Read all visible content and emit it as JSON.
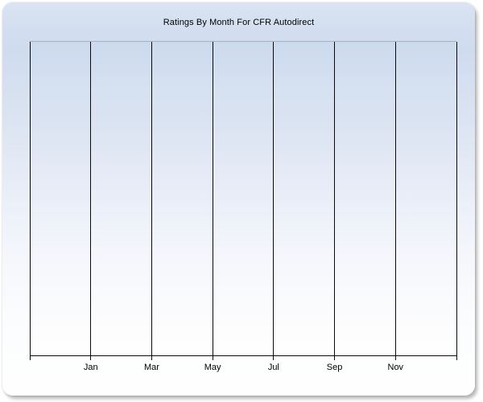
{
  "chart": {
    "title": "Ratings By Month For CFR Autodirect"
  },
  "chart_data": {
    "type": "line",
    "title": "Ratings By Month For CFR Autodirect",
    "x_axis": {
      "tick_labels": [
        "Jan",
        "Mar",
        "May",
        "Jul",
        "Sep",
        "Nov"
      ],
      "gridline_count": 8,
      "months_per_gridline_interval": 2,
      "labels_positioned_under_interior_gridlines": true
    },
    "y_axis": {
      "tick_labels": [],
      "label": ""
    },
    "series": [],
    "layout": {
      "grid": "vertical-only",
      "legend": "none",
      "plot_empty": true,
      "panel_style": "rounded-gradient-card"
    }
  },
  "colors": {
    "panel_gradient_top": "#d6e1f1",
    "panel_gradient_upper": "#cfdcee",
    "panel_gradient_mid": "#e9eef8",
    "panel_gradient_bottom": "#fefefe",
    "plot_top_border": "#a9b1c1",
    "gridline": "#0a0a0a",
    "axis": "#0a0a0a",
    "title_text": "#000000",
    "tick_label_text": "#000000",
    "page_background": "#ffffff"
  }
}
